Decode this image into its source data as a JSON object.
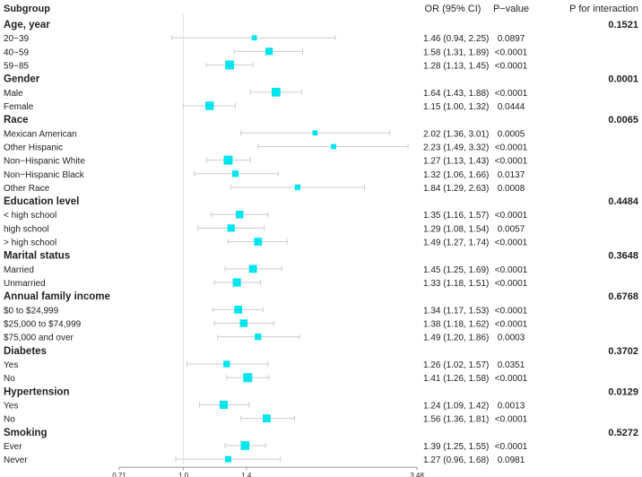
{
  "chart_data": {
    "type": "forest",
    "headers": {
      "subgroup": "Subgroup",
      "or": "OR (95% CI)",
      "p": "P−value",
      "pint": "P for interaction"
    },
    "x_scale": "log",
    "xlim": [
      0.71,
      3.48
    ],
    "ticks": [
      {
        "v": 0.71,
        "label": "0.71"
      },
      {
        "v": 1.0,
        "label": "1.0"
      },
      {
        "v": 1.4,
        "label": "1.4"
      },
      {
        "v": 3.48,
        "label": "3.48"
      }
    ],
    "reference_line": 1.0,
    "marker_color": "#00E5EE",
    "ci_color": "#cccccc",
    "rows": [
      {
        "label": "Age, year",
        "group": true,
        "pint": "0.1521"
      },
      {
        "label": "20−39",
        "or": 1.46,
        "lo": 0.94,
        "hi": 2.25,
        "text": "1.46 (0.94, 2.25)",
        "p": "0.0897",
        "w": 0.3
      },
      {
        "label": "40−59",
        "or": 1.58,
        "lo": 1.31,
        "hi": 1.89,
        "text": "1.58 (1.31, 1.89)",
        "p": "<0.0001",
        "w": 0.7
      },
      {
        "label": "59−85",
        "or": 1.28,
        "lo": 1.13,
        "hi": 1.45,
        "text": "1.28 (1.13, 1.45)",
        "p": "<0.0001",
        "w": 1.0
      },
      {
        "label": "Gender",
        "group": true,
        "pint": "0.0001"
      },
      {
        "label": "Male",
        "or": 1.64,
        "lo": 1.43,
        "hi": 1.88,
        "text": "1.64 (1.43, 1.88)",
        "p": "<0.0001",
        "w": 0.95
      },
      {
        "label": "Female",
        "or": 1.15,
        "lo": 1.0,
        "hi": 1.32,
        "text": "1.15 (1.00, 1.32)",
        "p": "0.0444",
        "w": 0.9
      },
      {
        "label": "Race",
        "group": true,
        "pint": "0.0065"
      },
      {
        "label": "Mexican American",
        "or": 2.02,
        "lo": 1.36,
        "hi": 3.01,
        "text": "2.02 (1.36, 3.01)",
        "p": "0.0005",
        "w": 0.3
      },
      {
        "label": "Other Hispanic",
        "or": 2.23,
        "lo": 1.49,
        "hi": 3.32,
        "text": "2.23 (1.49, 3.32)",
        "p": "<0.0001",
        "w": 0.3
      },
      {
        "label": "Non−Hispanic White",
        "or": 1.27,
        "lo": 1.13,
        "hi": 1.43,
        "text": "1.27 (1.13, 1.43)",
        "p": "<0.0001",
        "w": 1.0
      },
      {
        "label": "Non−Hispanic Black",
        "or": 1.32,
        "lo": 1.06,
        "hi": 1.66,
        "text": "1.32 (1.06, 1.66)",
        "p": "0.0137",
        "w": 0.55
      },
      {
        "label": "Other Race",
        "or": 1.84,
        "lo": 1.29,
        "hi": 2.63,
        "text": "1.84 (1.29, 2.63)",
        "p": "0.0008",
        "w": 0.4
      },
      {
        "label": "Education level",
        "group": true,
        "pint": "0.4484"
      },
      {
        "label": "< high school",
        "or": 1.35,
        "lo": 1.16,
        "hi": 1.57,
        "text": "1.35 (1.16, 1.57)",
        "p": "<0.0001",
        "w": 0.75
      },
      {
        "label": "high school",
        "or": 1.29,
        "lo": 1.08,
        "hi": 1.54,
        "text": "1.29 (1.08, 1.54)",
        "p": "0.0057",
        "w": 0.7
      },
      {
        "label": "> high school",
        "or": 1.49,
        "lo": 1.27,
        "hi": 1.74,
        "text": "1.49 (1.27, 1.74)",
        "p": "<0.0001",
        "w": 0.8
      },
      {
        "label": "Marital status",
        "group": true,
        "pint": "0.3648"
      },
      {
        "label": "Married",
        "or": 1.45,
        "lo": 1.25,
        "hi": 1.69,
        "text": "1.45 (1.25, 1.69)",
        "p": "<0.0001",
        "w": 0.8
      },
      {
        "label": "Unmarried",
        "or": 1.33,
        "lo": 1.18,
        "hi": 1.51,
        "text": "1.33 (1.18, 1.51)",
        "p": "<0.0001",
        "w": 0.85
      },
      {
        "label": "Annual family income",
        "group": true,
        "pint": "0.6768"
      },
      {
        "label": "$0 to $24,999",
        "or": 1.34,
        "lo": 1.17,
        "hi": 1.53,
        "text": "1.34 (1.17, 1.53)",
        "p": "<0.0001",
        "w": 0.8
      },
      {
        "label": "$25,000 to $74,999",
        "or": 1.38,
        "lo": 1.18,
        "hi": 1.62,
        "text": "1.38 (1.18, 1.62)",
        "p": "<0.0001",
        "w": 0.75
      },
      {
        "label": "$75,000 and over",
        "or": 1.49,
        "lo": 1.2,
        "hi": 1.86,
        "text": "1.49 (1.20, 1.86)",
        "p": "0.0003",
        "w": 0.55
      },
      {
        "label": "Diabetes",
        "group": true,
        "pint": "0.3702"
      },
      {
        "label": "Yes",
        "or": 1.26,
        "lo": 1.02,
        "hi": 1.57,
        "text": "1.26 (1.02, 1.57)",
        "p": "0.0351",
        "w": 0.55
      },
      {
        "label": "No",
        "or": 1.41,
        "lo": 1.26,
        "hi": 1.58,
        "text": "1.41 (1.26, 1.58)",
        "p": "<0.0001",
        "w": 1.0
      },
      {
        "label": "Hypertension",
        "group": true,
        "pint": "0.0129"
      },
      {
        "label": "Yes",
        "or": 1.24,
        "lo": 1.09,
        "hi": 1.42,
        "text": "1.24 (1.09, 1.42)",
        "p": "0.0013",
        "w": 0.85
      },
      {
        "label": "No",
        "or": 1.56,
        "lo": 1.36,
        "hi": 1.81,
        "text": "1.56 (1.36, 1.81)",
        "p": "<0.0001",
        "w": 0.8
      },
      {
        "label": "Smoking",
        "group": true,
        "pint": "0.5272"
      },
      {
        "label": "Ever",
        "or": 1.39,
        "lo": 1.25,
        "hi": 1.55,
        "text": "1.39 (1.25, 1.55)",
        "p": "<0.0001",
        "w": 0.95
      },
      {
        "label": "Never",
        "or": 1.27,
        "lo": 0.96,
        "hi": 1.68,
        "text": "1.27 (0.96, 1.68)",
        "p": "0.0981",
        "w": 0.5
      }
    ]
  }
}
